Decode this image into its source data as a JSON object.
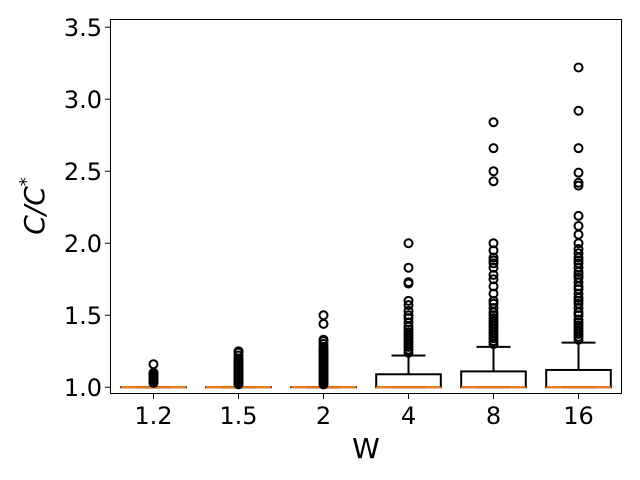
{
  "chart_data": {
    "type": "boxplot",
    "xlabel": "W",
    "ylabel_main": "C/C",
    "ylabel_sup": "*",
    "ylim": [
      0.96,
      3.55
    ],
    "yticks": [
      1.0,
      1.5,
      2.0,
      2.5,
      3.0,
      3.5
    ],
    "ytick_labels": [
      "1.0",
      "1.5",
      "2.0",
      "2.5",
      "3.0",
      "3.5"
    ],
    "grid": false,
    "colors": {
      "box": "#000000",
      "median": "#ff7f0e",
      "flier": "#000000"
    },
    "categories": [
      "1.2",
      "1.5",
      "2",
      "4",
      "8",
      "16"
    ],
    "boxes": [
      {
        "label": "1.2",
        "whislo": 1.0,
        "q1": 1.0,
        "med": 1.0,
        "q3": 1.0,
        "whishi": 1.0,
        "fliers": [
          1.03,
          1.04,
          1.05,
          1.06,
          1.07,
          1.08,
          1.09,
          1.1,
          1.16
        ]
      },
      {
        "label": "1.5",
        "whislo": 1.0,
        "q1": 1.0,
        "med": 1.0,
        "q3": 1.0,
        "whishi": 1.0,
        "fliers": [
          1.02,
          1.03,
          1.04,
          1.05,
          1.06,
          1.07,
          1.08,
          1.09,
          1.1,
          1.11,
          1.12,
          1.13,
          1.14,
          1.15,
          1.16,
          1.17,
          1.18,
          1.19,
          1.2,
          1.22,
          1.24,
          1.25
        ]
      },
      {
        "label": "2",
        "whislo": 1.0,
        "q1": 1.0,
        "med": 1.0,
        "q3": 1.0,
        "whishi": 1.0,
        "fliers": [
          1.02,
          1.03,
          1.04,
          1.05,
          1.06,
          1.07,
          1.08,
          1.09,
          1.1,
          1.11,
          1.12,
          1.13,
          1.14,
          1.15,
          1.16,
          1.17,
          1.18,
          1.19,
          1.2,
          1.21,
          1.22,
          1.23,
          1.24,
          1.25,
          1.26,
          1.28,
          1.3,
          1.32,
          1.33,
          1.44,
          1.5
        ]
      },
      {
        "label": "4",
        "whislo": 1.0,
        "q1": 1.0,
        "med": 1.0,
        "q3": 1.09,
        "whishi": 1.22,
        "fliers": [
          1.24,
          1.26,
          1.28,
          1.3,
          1.32,
          1.34,
          1.36,
          1.38,
          1.4,
          1.42,
          1.45,
          1.48,
          1.5,
          1.53,
          1.57,
          1.6,
          1.72,
          1.73,
          1.83,
          2.0
        ]
      },
      {
        "label": "8",
        "whislo": 1.0,
        "q1": 1.0,
        "med": 1.0,
        "q3": 1.11,
        "whishi": 1.28,
        "fliers": [
          1.3,
          1.32,
          1.34,
          1.36,
          1.38,
          1.4,
          1.42,
          1.44,
          1.46,
          1.48,
          1.5,
          1.52,
          1.55,
          1.58,
          1.6,
          1.65,
          1.7,
          1.75,
          1.78,
          1.83,
          1.86,
          1.88,
          1.9,
          1.95,
          2.0,
          2.43,
          2.5,
          2.66,
          2.84
        ]
      },
      {
        "label": "16",
        "whislo": 1.0,
        "q1": 1.0,
        "med": 1.0,
        "q3": 1.12,
        "whishi": 1.31,
        "fliers": [
          1.33,
          1.35,
          1.37,
          1.39,
          1.41,
          1.43,
          1.45,
          1.47,
          1.5,
          1.52,
          1.55,
          1.58,
          1.6,
          1.62,
          1.65,
          1.68,
          1.7,
          1.73,
          1.76,
          1.78,
          1.8,
          1.83,
          1.86,
          1.88,
          1.9,
          1.93,
          1.96,
          2.0,
          2.06,
          2.12,
          2.19,
          2.4,
          2.42,
          2.49,
          2.66,
          2.92,
          3.22
        ]
      }
    ]
  }
}
